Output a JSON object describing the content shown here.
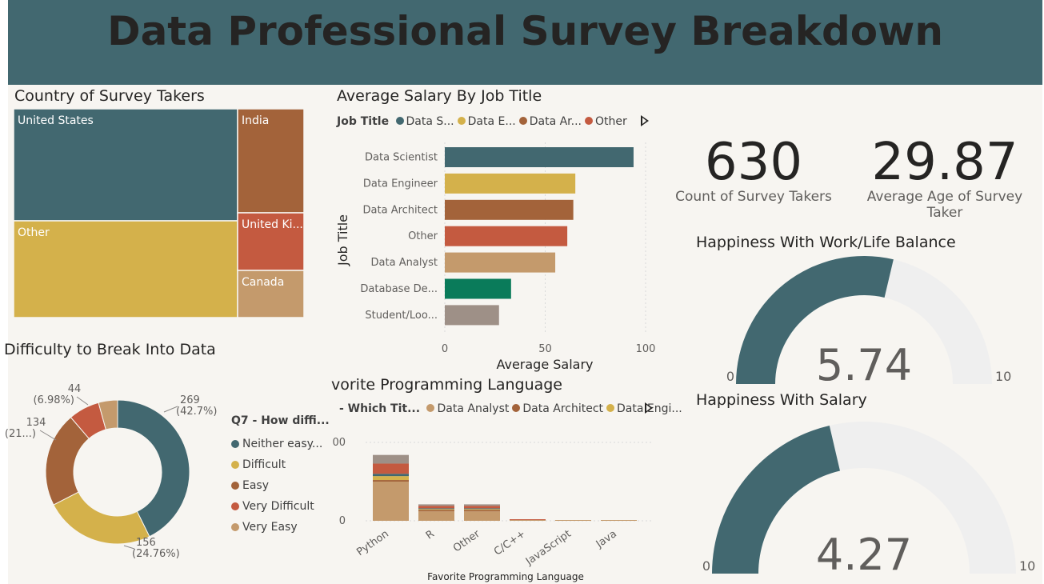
{
  "page": {
    "title": "Data Professional Survey Breakdown"
  },
  "colors": {
    "teal": "#426870",
    "gold": "#d4b14b",
    "brown": "#a3633a",
    "red": "#c45a40",
    "tan": "#c49a6c",
    "green": "#0a7b5a",
    "gray": "#9e9087",
    "track": "#efefef"
  },
  "treemap": {
    "title": "Country of Survey Takers",
    "chart_data": {
      "type": "treemap",
      "title": "Country of Survey Takers",
      "items": [
        {
          "label": "United States",
          "color": "#426870"
        },
        {
          "label": "Other",
          "color": "#d4b14b"
        },
        {
          "label": "India",
          "color": "#a3633a"
        },
        {
          "label": "United Ki...",
          "color": "#c45a40"
        },
        {
          "label": "Canada",
          "color": "#c49a6c"
        }
      ]
    }
  },
  "salary_chart": {
    "title": "Average Salary By Job Title",
    "legend": {
      "title": "Job Title",
      "items": [
        {
          "label": "Data S...",
          "color": "#426870"
        },
        {
          "label": "Data E...",
          "color": "#d4b14b"
        },
        {
          "label": "Data Ar...",
          "color": "#a3633a"
        },
        {
          "label": "Other",
          "color": "#c45a40"
        }
      ]
    },
    "chart_data": {
      "type": "bar",
      "orientation": "horizontal",
      "title": "Average Salary By Job Title",
      "xlabel": "Average Salary",
      "ylabel": "Job Title",
      "xlim": [
        0,
        100
      ],
      "xticks": [
        "0",
        "50",
        "100"
      ],
      "categories": [
        "Data Scientist",
        "Data Engineer",
        "Data Architect",
        "Other",
        "Data Analyst",
        "Database De...",
        "Student/Loo..."
      ],
      "values": [
        94,
        65,
        64,
        61,
        55,
        33,
        27
      ],
      "colors": [
        "#426870",
        "#d4b14b",
        "#a3633a",
        "#c45a40",
        "#c49a6c",
        "#0a7b5a",
        "#9e9087"
      ],
      "grid": true
    }
  },
  "cards": [
    {
      "value": "630",
      "label": "Count of Survey Takers"
    },
    {
      "value": "29.87",
      "label": "Average Age of Survey Taker"
    }
  ],
  "gauges": [
    {
      "title": "Happiness With Work/Life Balance",
      "value": 5.74,
      "value_label": "5.74",
      "min_label": "0",
      "max_label": "10",
      "min": 0,
      "max": 10
    },
    {
      "title": "Happiness With Salary",
      "value": 4.27,
      "value_label": "4.27",
      "min_label": "0",
      "max_label": "10",
      "min": 0,
      "max": 10
    }
  ],
  "donut": {
    "title": "Difficulty to Break Into Data",
    "legend_title": "Q7 - How diffi...",
    "chart_data": {
      "type": "pie",
      "donut": true,
      "title": "Difficulty to Break Into Data",
      "slices": [
        {
          "label": "Neither easy...",
          "value": 269,
          "percent": 42.7,
          "color": "#426870",
          "dl1": "269",
          "dl2": "(42.7%)"
        },
        {
          "label": "Difficult",
          "value": 156,
          "percent": 24.76,
          "color": "#d4b14b",
          "dl1": "156",
          "dl2": "(24.76%)"
        },
        {
          "label": "Easy",
          "value": 134,
          "percent": 21.27,
          "color": "#a3633a",
          "dl1": "134",
          "dl2": "(21...)"
        },
        {
          "label": "Very Difficult",
          "value": 44,
          "percent": 6.98,
          "color": "#c45a40",
          "dl1": "44",
          "dl2": "(6.98%)"
        },
        {
          "label": "Very Easy",
          "value": 27,
          "percent": 4.29,
          "color": "#c49a6c",
          "dl1": "",
          "dl2": ""
        }
      ]
    }
  },
  "lang_chart": {
    "title": "vorite Programming Language",
    "legend": {
      "title": "- Which Tit...",
      "items": [
        {
          "label": "Data Analyst",
          "color": "#c49a6c"
        },
        {
          "label": "Data Architect",
          "color": "#a3633a"
        },
        {
          "label": "Data Engi...",
          "color": "#d4b14b"
        }
      ]
    },
    "chart_data": {
      "type": "bar",
      "stacked": true,
      "title": "vorite Programming Language",
      "xlabel": "Favorite Programming Language",
      "ylabel": "",
      "ylim": [
        0,
        100
      ],
      "yticks": [
        "0",
        "00"
      ],
      "categories": [
        "Python",
        "R",
        "Other",
        "C/C++",
        "JavaScript",
        "Java"
      ],
      "series": [
        {
          "name": "Data Analyst",
          "color": "#c49a6c",
          "values": [
            50,
            12,
            12,
            1,
            1,
            1
          ]
        },
        {
          "name": "Data Architect",
          "color": "#a3633a",
          "values": [
            2,
            2,
            2,
            0,
            0,
            0
          ]
        },
        {
          "name": "Data Engi...",
          "color": "#d4b14b",
          "values": [
            5,
            1,
            1,
            0,
            0,
            0
          ]
        },
        {
          "name": "",
          "color": "#426870",
          "values": [
            3,
            1,
            1,
            0,
            0,
            0
          ]
        },
        {
          "name": "",
          "color": "#c45a40",
          "values": [
            13,
            3,
            3,
            1,
            0,
            0
          ]
        },
        {
          "name": "",
          "color": "#9e9087",
          "values": [
            11,
            2,
            2,
            0,
            0,
            0
          ]
        }
      ]
    }
  }
}
